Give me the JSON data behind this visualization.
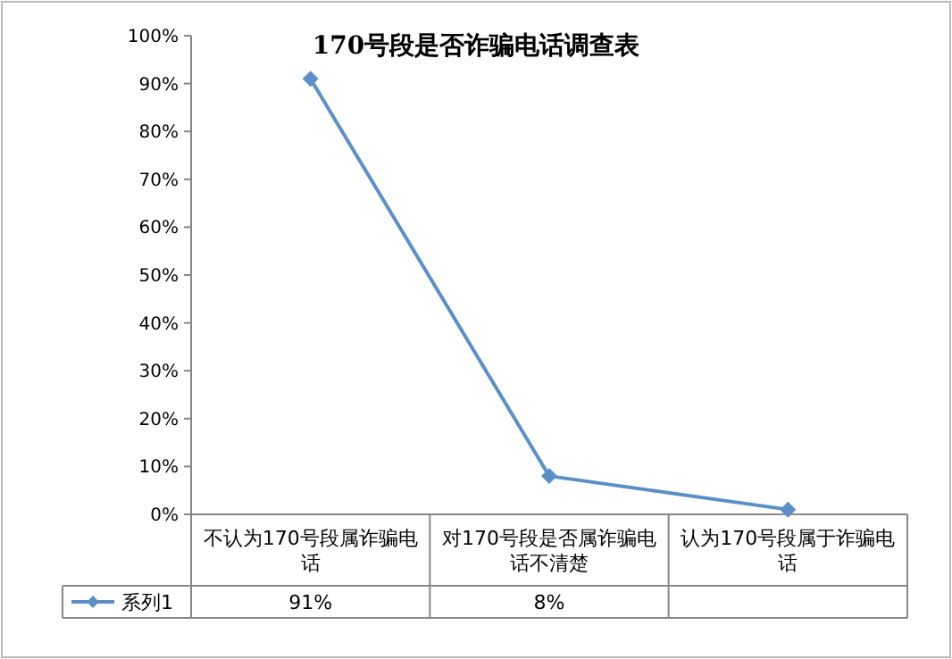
{
  "chart_data": {
    "type": "line",
    "title": "170号段是否诈骗电话调查表",
    "categories": [
      "不认为170号段属诈骗电话",
      "对170号段是否属诈骗电话不清楚",
      "认为170号段属于诈骗电话"
    ],
    "series": [
      {
        "name": "系列1",
        "color": "#5b8fc7",
        "values": [
          91,
          8,
          1
        ],
        "value_labels": [
          "91%",
          "8%",
          null
        ]
      }
    ],
    "ylim": [
      0,
      100
    ],
    "yticks": [
      {
        "value": 0,
        "label": "0%"
      },
      {
        "value": 10,
        "label": "10%"
      },
      {
        "value": 20,
        "label": "20%"
      },
      {
        "value": 30,
        "label": "30%"
      },
      {
        "value": 40,
        "label": "40%"
      },
      {
        "value": 50,
        "label": "50%"
      },
      {
        "value": 60,
        "label": "60%"
      },
      {
        "value": 70,
        "label": "70%"
      },
      {
        "value": 80,
        "label": "80%"
      },
      {
        "value": 90,
        "label": "90%"
      },
      {
        "value": 100,
        "label": "100%"
      }
    ],
    "grid": false,
    "legend": "bottom",
    "marker": "diamond",
    "line_style": "solid"
  }
}
